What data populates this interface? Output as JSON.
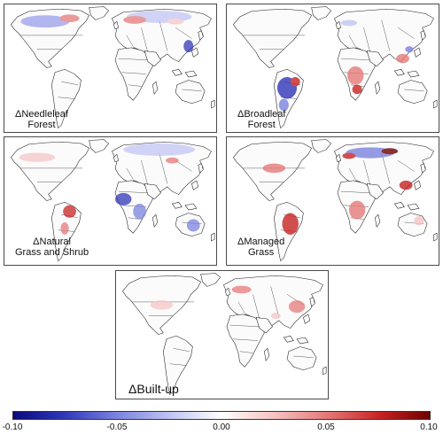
{
  "panels": [
    {
      "id": "needleleaf",
      "label_lines": [
        "ΔNeedleleaf",
        "Forest"
      ]
    },
    {
      "id": "broadleaf",
      "label_lines": [
        "ΔBroadleaf",
        "Forest"
      ]
    },
    {
      "id": "natural-grass",
      "label_lines": [
        "ΔNatural",
        "Grass and Shrub"
      ]
    },
    {
      "id": "managed-grass",
      "label_lines": [
        "ΔManaged",
        "Grass"
      ]
    },
    {
      "id": "built-up",
      "label_lines": [
        "ΔBuilt-up"
      ]
    }
  ],
  "colorbar": {
    "min": -0.1,
    "max": 0.1,
    "ticks": [
      "-0.10",
      "-0.05",
      "0.00",
      "0.05",
      "0.10"
    ],
    "colors": [
      "#0a0a7a",
      "#ffffff",
      "#6e0000"
    ]
  }
}
